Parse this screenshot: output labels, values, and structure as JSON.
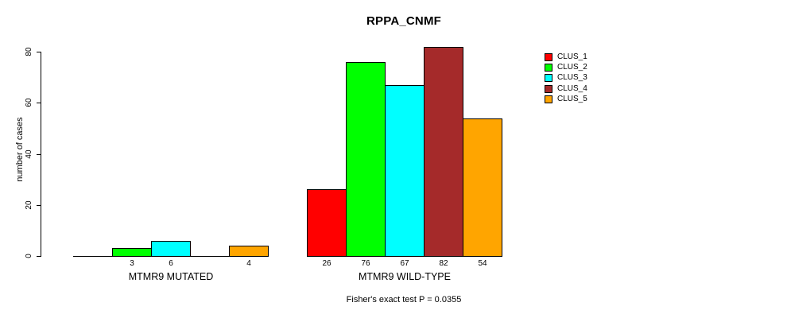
{
  "chart_data": {
    "type": "bar",
    "title": "RPPA_CNMF",
    "ylabel": "number of cases",
    "xlabel": "",
    "footnote": "Fisher's exact test P = 0.0355",
    "ylim": [
      0,
      80
    ],
    "yticks": [
      0,
      20,
      40,
      60,
      80
    ],
    "grid": false,
    "legend_position": "right-inside",
    "bar_border_color": "#000000",
    "background_color": "#ffffff",
    "categories": [
      "MTMR9 MUTATED",
      "MTMR9 WILD-TYPE"
    ],
    "series": [
      {
        "name": "CLUS_1",
        "color": "#FF0000",
        "values": [
          0,
          26
        ]
      },
      {
        "name": "CLUS_2",
        "color": "#00FF00",
        "values": [
          3,
          76
        ]
      },
      {
        "name": "CLUS_3",
        "color": "#00FFFF",
        "values": [
          6,
          67
        ]
      },
      {
        "name": "CLUS_4",
        "color": "#A52A2A",
        "values": [
          0,
          82
        ]
      },
      {
        "name": "CLUS_5",
        "color": "#FFA500",
        "values": [
          4,
          54
        ]
      }
    ],
    "value_labels_shown": {
      "MTMR9 MUTATED": [
        "3",
        "6",
        "4"
      ],
      "MTMR9 WILD-TYPE": [
        "26",
        "76",
        "67",
        "82",
        "54"
      ]
    },
    "zero_value_bars_drawn_as_baseline": true
  }
}
